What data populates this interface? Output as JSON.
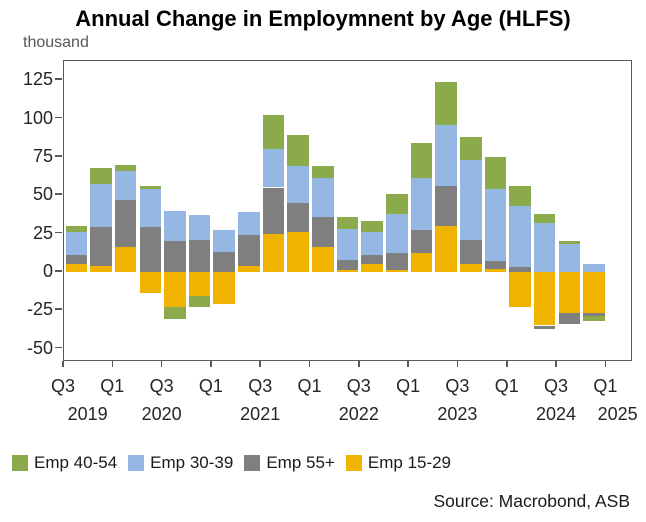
{
  "title": "Annual Change in Employmnent by Age (HLFS)",
  "unit_label": "thousand",
  "source": "Source: Macrobond, ASB",
  "chart_data": {
    "type": "bar",
    "stacked": true,
    "title": "Annual Change in Employmnent by Age (HLFS)",
    "ylabel": "thousand",
    "ylim": [
      -57.5,
      137.5
    ],
    "yticks": [
      125,
      100,
      75,
      50,
      25,
      0,
      -25,
      -50
    ],
    "grid": false,
    "legend_position": "bottom",
    "slots": 23,
    "categories": [
      "2019 Q3",
      "2019 Q4",
      "2020 Q1",
      "2020 Q2",
      "2020 Q3",
      "2020 Q4",
      "2021 Q1",
      "2021 Q2",
      "2021 Q3",
      "2021 Q4",
      "2022 Q1",
      "2022 Q2",
      "2022 Q3",
      "2022 Q4",
      "2023 Q1",
      "2023 Q2",
      "2023 Q3",
      "2023 Q4",
      "2024 Q1",
      "2024 Q2",
      "2024 Q3",
      "2024 Q4"
    ],
    "series": [
      {
        "name": "Emp 15-29",
        "color": "#F0B400",
        "values": [
          5,
          4,
          16,
          -14,
          -23,
          -16,
          -21,
          4,
          25,
          26,
          16,
          1,
          5,
          1,
          12,
          30,
          5,
          2,
          -23,
          -35,
          -27,
          -27
        ]
      },
      {
        "name": "Emp 55+",
        "color": "#7F7F7F",
        "values": [
          6,
          25,
          31,
          29,
          20,
          21,
          13,
          20,
          30,
          19,
          20,
          7,
          6,
          11,
          15,
          26,
          16,
          5,
          3,
          -2,
          -7,
          -2
        ]
      },
      {
        "name": "Emp 30-39",
        "color": "#94B7E4",
        "values": [
          15,
          28,
          19,
          25,
          20,
          16,
          14,
          15,
          25,
          24,
          25,
          20,
          15,
          26,
          34,
          40,
          52,
          47,
          40,
          32,
          18,
          5
        ]
      },
      {
        "name": "Emp 40-54",
        "color": "#8BAA4B",
        "values": [
          4,
          11,
          4,
          2,
          -8,
          -7,
          0,
          0,
          22,
          20,
          8,
          8,
          7,
          13,
          23,
          28,
          15,
          21,
          13,
          6,
          2,
          -3
        ]
      }
    ],
    "legend": [
      {
        "label": "Emp 40-54",
        "color": "#8BAA4B"
      },
      {
        "label": "Emp 30-39",
        "color": "#94B7E4"
      },
      {
        "label": "Emp 55+",
        "color": "#7F7F7F"
      },
      {
        "label": "Emp 15-29",
        "color": "#F0B400"
      }
    ],
    "x_axis": {
      "quarter_ticks": [
        {
          "label": "Q3",
          "slot": 0
        },
        {
          "label": "Q1",
          "slot": 2
        },
        {
          "label": "Q3",
          "slot": 4
        },
        {
          "label": "Q1",
          "slot": 6
        },
        {
          "label": "Q3",
          "slot": 8
        },
        {
          "label": "Q1",
          "slot": 10
        },
        {
          "label": "Q3",
          "slot": 12
        },
        {
          "label": "Q1",
          "slot": 14
        },
        {
          "label": "Q3",
          "slot": 16
        },
        {
          "label": "Q1",
          "slot": 18
        },
        {
          "label": "Q3",
          "slot": 20
        },
        {
          "label": "Q1",
          "slot": 22
        }
      ],
      "years": [
        {
          "label": "2019",
          "from": 0,
          "to": 2
        },
        {
          "label": "2020",
          "from": 2,
          "to": 6
        },
        {
          "label": "2021",
          "from": 6,
          "to": 10
        },
        {
          "label": "2022",
          "from": 10,
          "to": 14
        },
        {
          "label": "2023",
          "from": 14,
          "to": 18
        },
        {
          "label": "2024",
          "from": 18,
          "to": 22
        },
        {
          "label": "2025",
          "from": 22,
          "to": 23
        }
      ]
    }
  }
}
